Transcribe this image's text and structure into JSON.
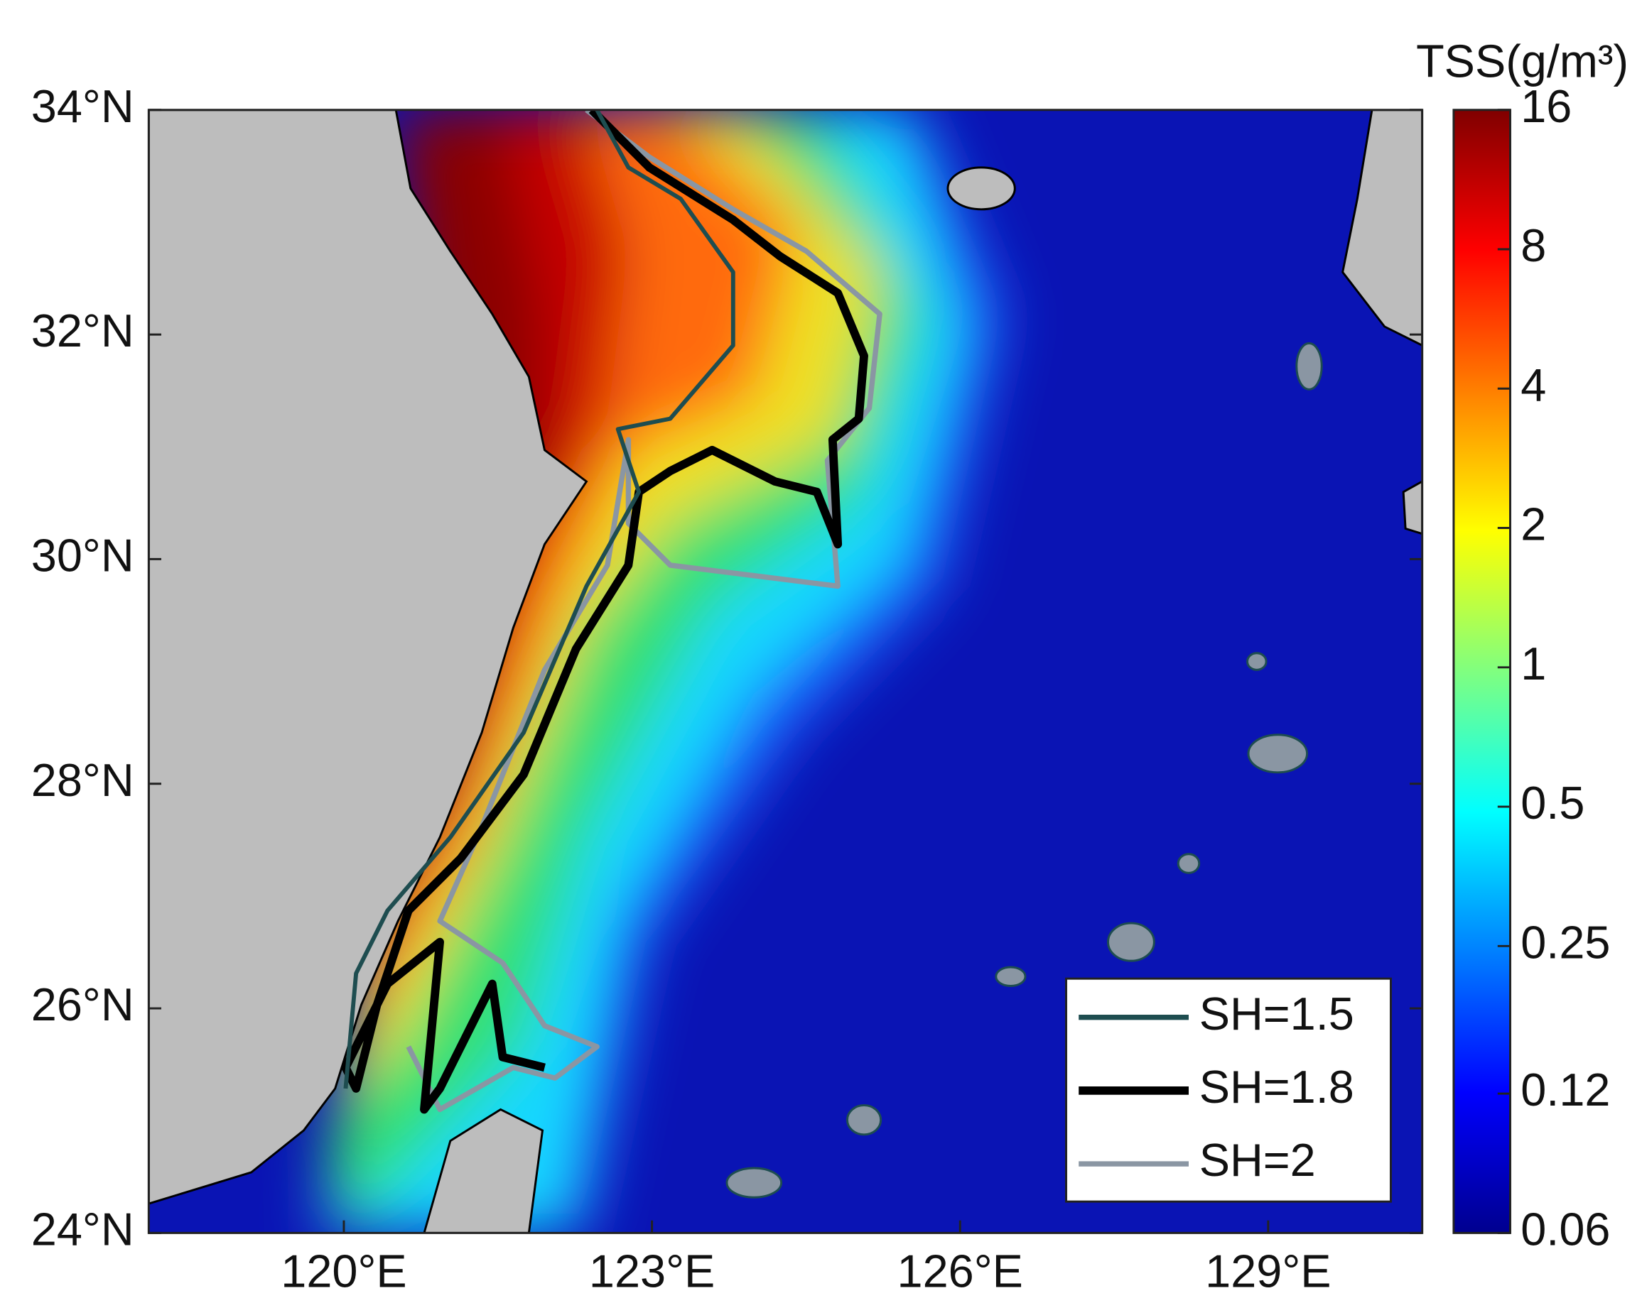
{
  "map": {
    "xlim": [
      118.1,
      130.5
    ],
    "ylim": [
      24,
      34
    ],
    "xticks": [
      {
        "value": 120,
        "label": "120°E"
      },
      {
        "value": 123,
        "label": "123°E"
      },
      {
        "value": 126,
        "label": "126°E"
      },
      {
        "value": 129,
        "label": "129°E"
      }
    ],
    "yticks": [
      {
        "value": 24,
        "label": "24°N"
      },
      {
        "value": 26,
        "label": "26°N"
      },
      {
        "value": 28,
        "label": "28°N"
      },
      {
        "value": 30,
        "label": "30°N"
      },
      {
        "value": 32,
        "label": "32°N"
      },
      {
        "value": 34,
        "label": "34°N"
      }
    ],
    "legend": {
      "position": "lower right",
      "entries": [
        {
          "name": "SH=1.5",
          "color": "#1e4d50"
        },
        {
          "name": "SH=1.8",
          "color": "#000000"
        },
        {
          "name": "SH=2",
          "color": "#8a96a3"
        }
      ]
    }
  },
  "colorbar": {
    "title": "TSS(g/m³)",
    "scale": "log",
    "lim": [
      0.06,
      16
    ],
    "ticks": [
      16,
      8,
      4,
      2,
      1,
      0.5,
      0.25,
      0.12,
      0.06
    ]
  }
}
